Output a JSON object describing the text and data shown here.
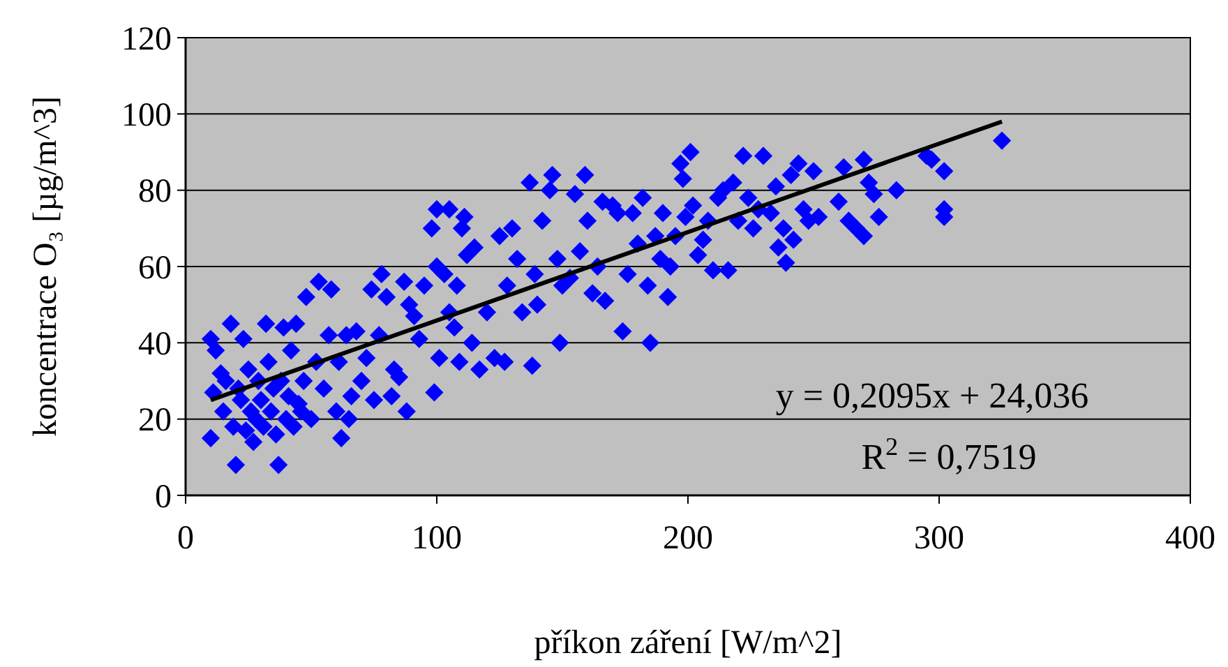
{
  "chart_data": {
    "type": "scatter",
    "xlabel": "příkon záření [W/m^2]",
    "ylabel": "koncentrace O₃  [µg/m^3]",
    "xlim": [
      0,
      400
    ],
    "xticks": [
      0,
      100,
      200,
      300,
      400
    ],
    "ylim": [
      0,
      120
    ],
    "yticks": [
      0,
      20,
      40,
      60,
      80,
      100,
      120
    ],
    "grid": "y",
    "marker": "diamond",
    "annotations": [
      "y = 0,2095x + 24,036",
      "R$^{2}$ = 0,7519"
    ],
    "series": [
      {
        "color": "#0000ff",
        "x": [
          10,
          10,
          11,
          12,
          14,
          15,
          16,
          18,
          19,
          20,
          21,
          22,
          23,
          24,
          25,
          26,
          27,
          28,
          29,
          30,
          31,
          32,
          33,
          34,
          35,
          36,
          37,
          38,
          39,
          40,
          41,
          42,
          43,
          44,
          45,
          46,
          47,
          48,
          50,
          52,
          53,
          55,
          57,
          58,
          60,
          61,
          62,
          64,
          65,
          66,
          68,
          70,
          72,
          74,
          75,
          77,
          78,
          80,
          82,
          83,
          85,
          87,
          88,
          89,
          91,
          93,
          95,
          98,
          99,
          100,
          100,
          101,
          103,
          105,
          105,
          107,
          108,
          109,
          110,
          111,
          112,
          114,
          115,
          117,
          120,
          123,
          125,
          127,
          128,
          130,
          132,
          134,
          137,
          138,
          139,
          140,
          142,
          145,
          146,
          148,
          149,
          150,
          153,
          155,
          157,
          159,
          160,
          162,
          164,
          166,
          167,
          170,
          172,
          174,
          176,
          178,
          180,
          182,
          184,
          185,
          187,
          189,
          190,
          192,
          193,
          195,
          197,
          198,
          199,
          201,
          202,
          204,
          206,
          208,
          210,
          212,
          214,
          216,
          218,
          220,
          222,
          224,
          226,
          228,
          230,
          233,
          235,
          236,
          238,
          239,
          241,
          242,
          244,
          246,
          248,
          250,
          252,
          260,
          262,
          264,
          267,
          270,
          270,
          272,
          274,
          276,
          283,
          295,
          297,
          302,
          302,
          302,
          325
        ],
        "values": [
          41,
          15,
          27,
          38,
          32,
          22,
          30,
          45,
          18,
          8,
          28,
          25,
          41,
          17,
          33,
          22,
          14,
          20,
          30,
          25,
          18,
          45,
          35,
          22,
          28,
          16,
          8,
          30,
          44,
          20,
          26,
          38,
          18,
          45,
          24,
          22,
          30,
          52,
          20,
          35,
          56,
          28,
          42,
          54,
          22,
          35,
          15,
          42,
          20,
          26,
          43,
          30,
          36,
          54,
          25,
          42,
          58,
          52,
          26,
          33,
          31,
          56,
          22,
          50,
          47,
          41,
          55,
          70,
          27,
          75,
          60,
          36,
          58,
          75,
          48,
          44,
          55,
          35,
          70,
          73,
          63,
          40,
          65,
          33,
          48,
          36,
          68,
          35,
          55,
          70,
          62,
          48,
          82,
          34,
          58,
          50,
          72,
          80,
          84,
          62,
          40,
          55,
          57,
          79,
          64,
          84,
          72,
          53,
          60,
          77,
          51,
          76,
          74,
          43,
          58,
          74,
          66,
          78,
          55,
          40,
          68,
          62,
          74,
          52,
          60,
          68,
          87,
          83,
          73,
          90,
          76,
          63,
          67,
          72,
          59,
          78,
          80,
          59,
          82,
          72,
          89,
          78,
          70,
          75,
          89,
          74,
          81,
          65,
          70,
          61,
          84,
          67,
          87,
          75,
          72,
          85,
          73,
          77,
          86,
          72,
          70,
          88,
          68,
          82,
          79,
          73,
          80,
          89,
          88,
          85,
          75,
          73,
          93
        ]
      },
      {
        "type": "line",
        "color": "#000000",
        "marker": "none",
        "x": [
          10,
          325
        ],
        "values": [
          25,
          98
        ]
      }
    ]
  }
}
